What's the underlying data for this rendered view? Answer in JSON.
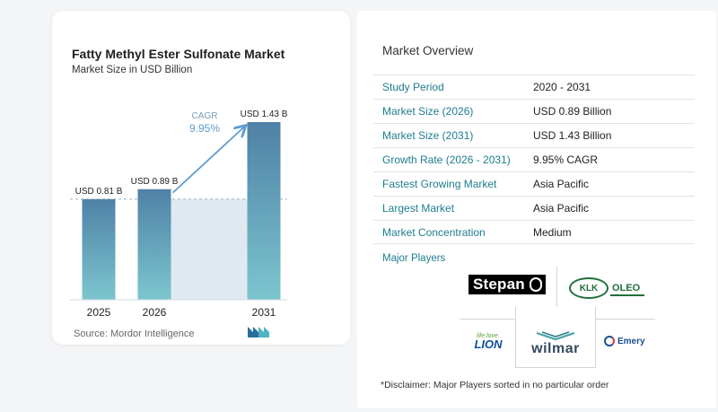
{
  "chart_data": {
    "type": "bar",
    "title": "Fatty Methyl Ester Sulfonate Market",
    "subtitle": "Market Size in USD Billion",
    "categories": [
      "2025",
      "2026",
      "2031"
    ],
    "values": [
      0.81,
      0.89,
      1.43
    ],
    "data_labels": [
      "USD 0.81 B",
      "USD 0.89 B",
      "USD 1.43 B"
    ],
    "cagr_label": "CAGR",
    "cagr_value": "9.95%",
    "ylim": [
      0,
      1.43
    ],
    "xlabel": "",
    "ylabel": "",
    "grid": false,
    "bar_color_top": "#4f81a6",
    "bar_color_bottom": "#7cc6cf",
    "band_color": "#dfe9f1",
    "arrow_color": "#5e9cd0"
  },
  "source": "Source:  Mordor Intelligence",
  "overview": {
    "title": "Market Overview",
    "rows": [
      {
        "label": "Study Period",
        "value": "2020 - 2031"
      },
      {
        "label": "Market Size (2026)",
        "value": "USD 0.89 Billion"
      },
      {
        "label": "Market Size (2031)",
        "value": "USD 1.43 Billion"
      },
      {
        "label": "Growth Rate (2026 - 2031)",
        "value": "9.95% CAGR"
      },
      {
        "label": "Fastest Growing Market",
        "value": "Asia Pacific"
      },
      {
        "label": "Largest Market",
        "value": "Asia Pacific"
      },
      {
        "label": "Market Concentration",
        "value": "Medium"
      }
    ]
  },
  "players": {
    "title": "Major Players",
    "logos": {
      "stepan": "Stepan",
      "klk_mark": "KLK",
      "klk_text": "OLEO",
      "lion_small": "life.love.",
      "lion_big": "LION",
      "wilmar": "wilmar",
      "emery": "Emery"
    }
  },
  "disclaimer": "*Disclaimer: Major Players sorted in no particular order",
  "colors": {
    "label_teal": "#1e7d8f",
    "divider": "#dfe3e8"
  }
}
